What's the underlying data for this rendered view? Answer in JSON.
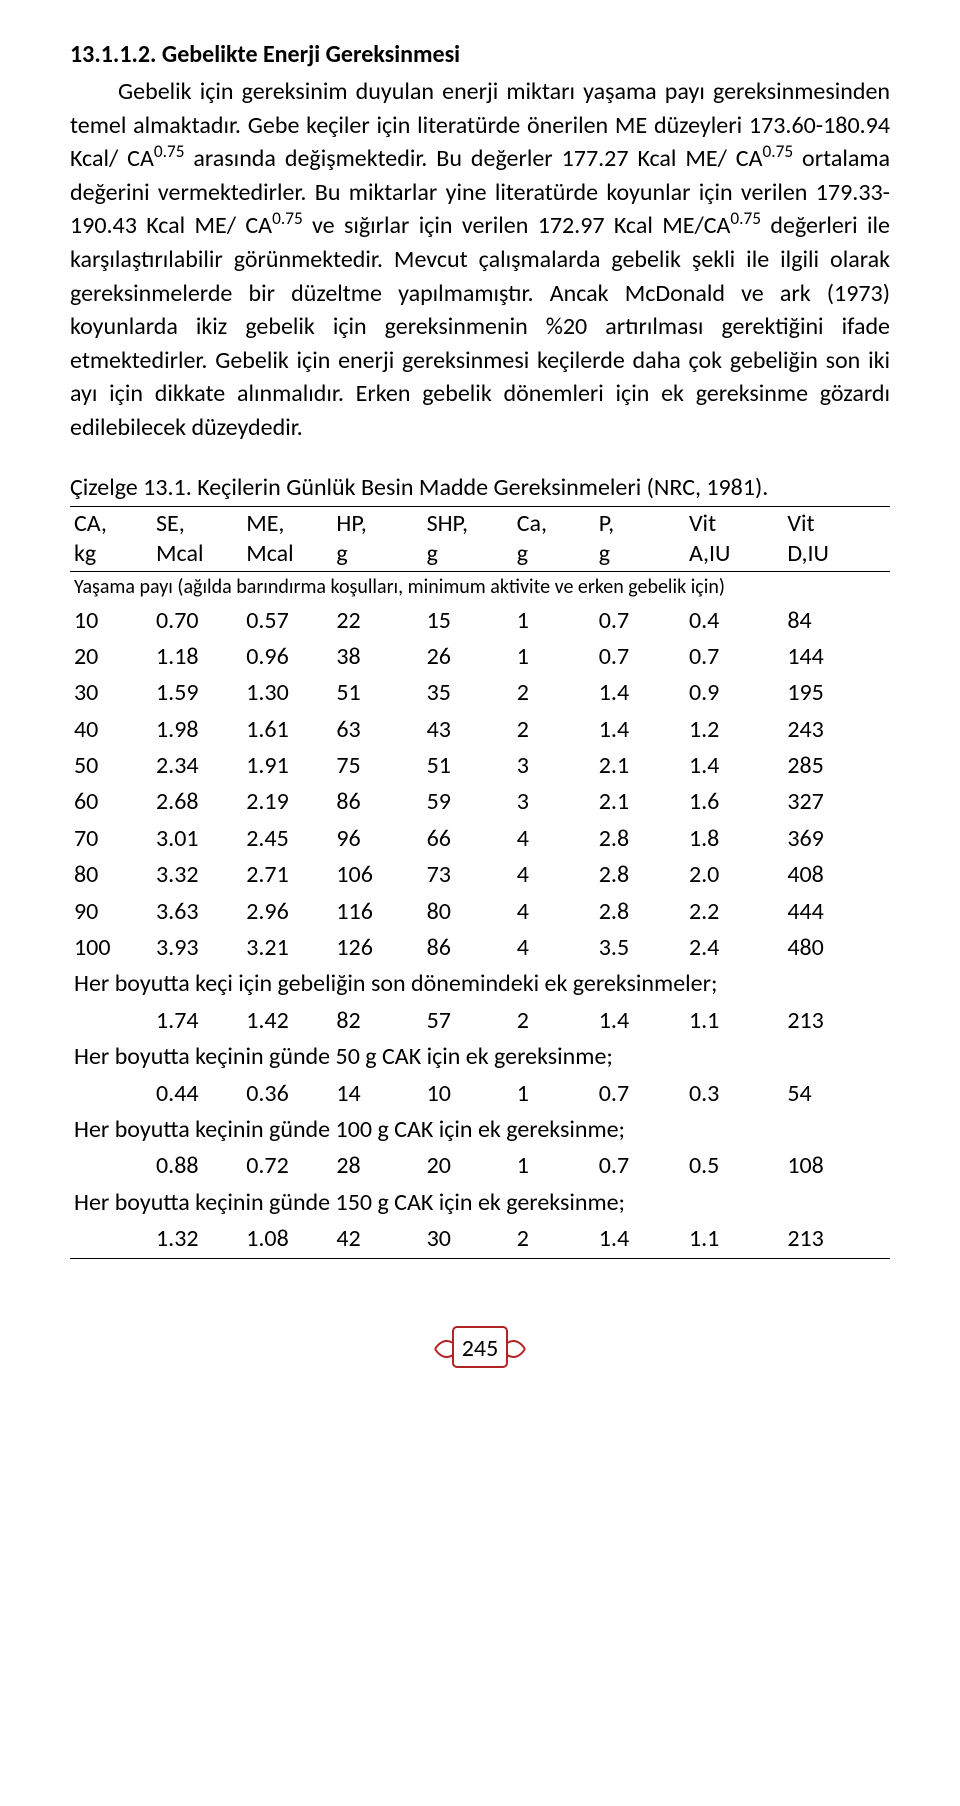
{
  "section": {
    "number": "13.1.1.2.",
    "title": "Gebelikte Enerji Gereksinmesi"
  },
  "paragraph": {
    "p1a": "Gebelik için gereksinim duyulan enerji miktarı yaşama payı gereksinmesinden temel almaktadır. Gebe keçiler için literatürde önerilen ME düzeyleri 173.60-180.94 Kcal/ CA",
    "sup1": "0.75",
    "p1b": " arasında değişmektedir. Bu değerler 177.27 Kcal ME/ CA",
    "sup2": "0.75",
    "p1c": " ortalama değerini vermektedirler. Bu miktarlar yine literatürde koyunlar için verilen 179.33-190.43 Kcal ME/ CA",
    "sup3": "0.75",
    "p1d": " ve sığırlar için verilen 172.97 Kcal ME/CA",
    "sup4": "0.75",
    "p1e": " değerleri ile karşılaştırılabilir görünmektedir. Mevcut çalışmalarda gebelik şekli ile ilgili olarak gereksinmelerde bir düzeltme yapılmamıştır. Ancak McDonald ve ark (1973) koyunlarda ikiz gebelik için gereksinmenin %20 artırılması gerektiğini ifade etmektedirler. Gebelik için enerji gereksinmesi keçilerde daha çok gebeliğin son iki ayı için dikkate alınmalıdır. Erken gebelik dönemleri için ek gereksinme gözardı edilebilecek düzeydedir."
  },
  "table": {
    "title": "Çizelge 13.1. Keçilerin Günlük Besin Madde Gereksinmeleri (NRC, 1981).",
    "headers": [
      {
        "l1": "CA,",
        "l2": "kg"
      },
      {
        "l1": "SE,",
        "l2": "Mcal"
      },
      {
        "l1": "ME,",
        "l2": "Mcal"
      },
      {
        "l1": "HP,",
        "l2": "g"
      },
      {
        "l1": "SHP,",
        "l2": "g"
      },
      {
        "l1": "Ca,",
        "l2": "g"
      },
      {
        "l1": "P,",
        "l2": "g"
      },
      {
        "l1": "Vit",
        "l2": "A,IU"
      },
      {
        "l1": "Vit",
        "l2": "D,IU"
      }
    ],
    "note1": "Yaşama payı (ağılda barındırma koşulları, minimum aktivite ve erken gebelik için)",
    "rows": [
      [
        "10",
        "0.70",
        "0.57",
        "22",
        "15",
        "1",
        "0.7",
        "0.4",
        "84"
      ],
      [
        "20",
        "1.18",
        "0.96",
        "38",
        "26",
        "1",
        "0.7",
        "0.7",
        "144"
      ],
      [
        "30",
        "1.59",
        "1.30",
        "51",
        "35",
        "2",
        "1.4",
        "0.9",
        "195"
      ],
      [
        "40",
        "1.98",
        "1.61",
        "63",
        "43",
        "2",
        "1.4",
        "1.2",
        "243"
      ],
      [
        "50",
        "2.34",
        "1.91",
        "75",
        "51",
        "3",
        "2.1",
        "1.4",
        "285"
      ],
      [
        "60",
        "2.68",
        "2.19",
        "86",
        "59",
        "3",
        "2.1",
        "1.6",
        "327"
      ],
      [
        "70",
        "3.01",
        "2.45",
        "96",
        "66",
        "4",
        "2.8",
        "1.8",
        "369"
      ],
      [
        "80",
        "3.32",
        "2.71",
        "106",
        "73",
        "4",
        "2.8",
        "2.0",
        "408"
      ],
      [
        "90",
        "3.63",
        "2.96",
        "116",
        "80",
        "4",
        "2.8",
        "2.2",
        "444"
      ],
      [
        "100",
        "3.93",
        "3.21",
        "126",
        "86",
        "4",
        "3.5",
        "2.4",
        "480"
      ]
    ],
    "sec1": "Her boyutta keçi için gebeliğin son dönemindeki ek gereksinmeler;",
    "row_s1": [
      "",
      "1.74",
      "1.42",
      "82",
      "57",
      "2",
      "1.4",
      "1.1",
      "213"
    ],
    "sec2": "Her boyutta keçinin günde 50 g CAK için ek gereksinme;",
    "row_s2": [
      "",
      "0.44",
      "0.36",
      "14",
      "10",
      "1",
      "0.7",
      "0.3",
      "54"
    ],
    "sec3": "Her boyutta keçinin günde 100 g CAK için ek gereksinme;",
    "row_s3": [
      "",
      "0.88",
      "0.72",
      "28",
      "20",
      "1",
      "0.7",
      "0.5",
      "108"
    ],
    "sec4": "Her boyutta keçinin günde 150 g CAK için ek gereksinme;",
    "row_s4": [
      "",
      "1.32",
      "1.08",
      "42",
      "30",
      "2",
      "1.4",
      "1.1",
      "213"
    ]
  },
  "pageNumber": "245",
  "colors": {
    "frame": "#b22222"
  }
}
